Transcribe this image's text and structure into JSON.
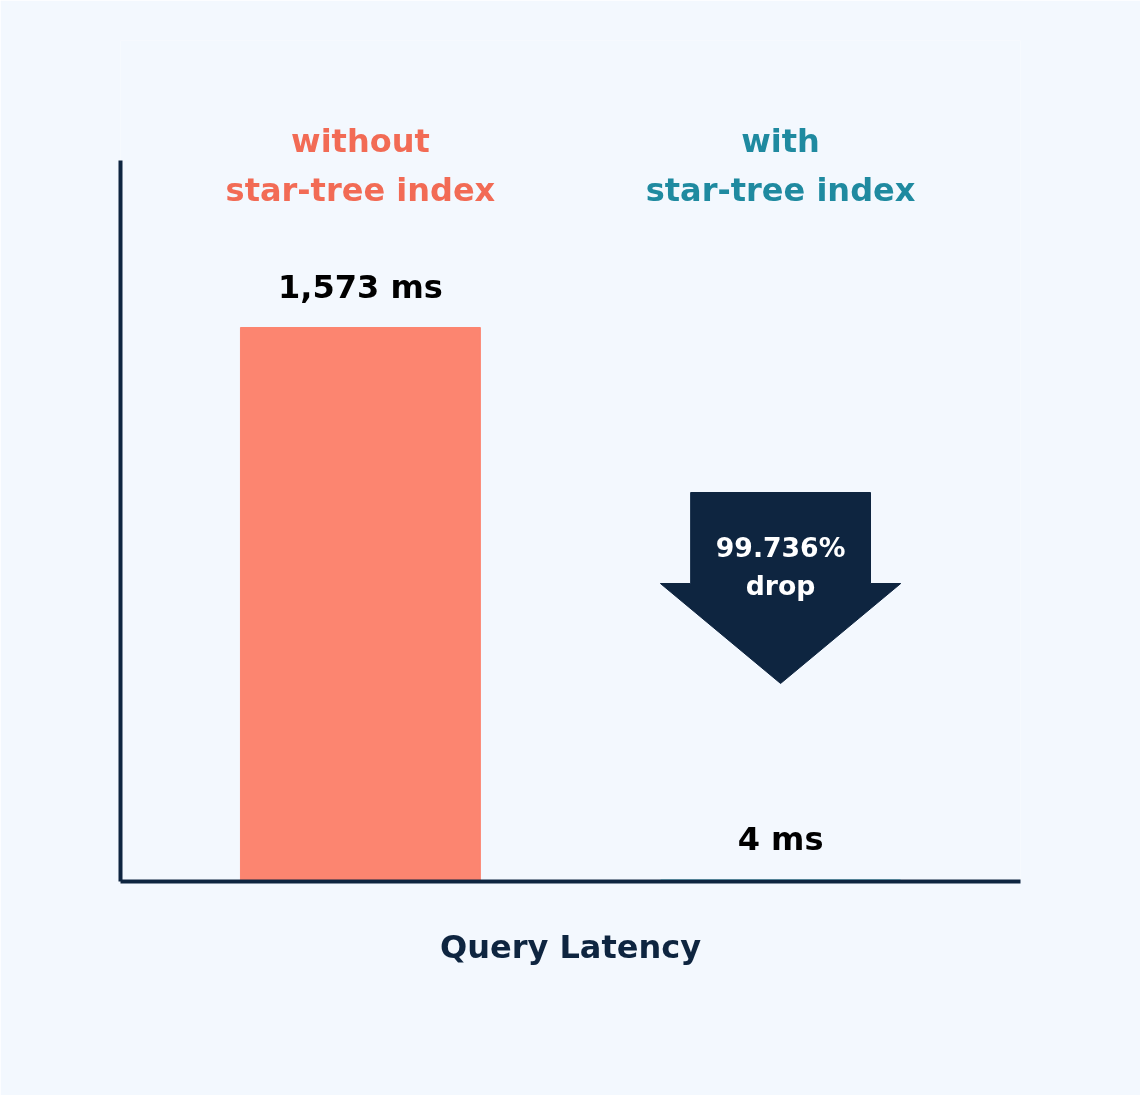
{
  "chart_data": {
    "type": "bar",
    "xlabel": "Query Latency",
    "categories": [
      "without\nstar-tree index",
      "with\nstar-tree index"
    ],
    "values": [
      1573,
      4
    ],
    "colors": [
      "#fc8570",
      "#22c6dc"
    ],
    "value_labels": [
      "1,573 ms",
      "4 ms"
    ],
    "annotations": [
      "99.736%\ndrop"
    ],
    "tick_labels": false,
    "grid": false
  }
}
